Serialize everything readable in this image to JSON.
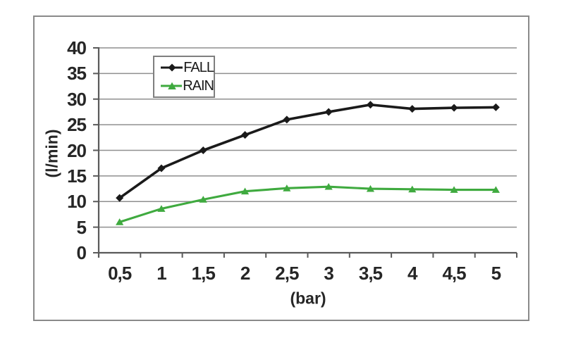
{
  "figure": {
    "background": "#ffffff",
    "border_color": "#8a8a8a"
  },
  "chart_data": {
    "type": "line",
    "x": [
      0.5,
      1,
      1.5,
      2,
      2.5,
      3,
      3.5,
      4,
      4.5,
      5
    ],
    "x_tick_labels": [
      "0,5",
      "1",
      "1,5",
      "2",
      "2,5",
      "3",
      "3,5",
      "4",
      "4,5",
      "5"
    ],
    "series": [
      {
        "name": "FALL",
        "color": "#1a1a1a",
        "marker": "diamond",
        "values": [
          10.7,
          16.5,
          20,
          23,
          26,
          27.5,
          28.9,
          28.1,
          28.3,
          28.4
        ]
      },
      {
        "name": "RAIN",
        "color": "#3faa3f",
        "marker": "triangle",
        "values": [
          6,
          8.6,
          10.4,
          12,
          12.6,
          12.9,
          12.5,
          12.4,
          12.3,
          12.3
        ]
      }
    ],
    "title": "",
    "xlabel": "(bar)",
    "ylabel": "(l/min)",
    "ylim": [
      0,
      40
    ],
    "y_tick_step": 5,
    "y_tick_labels": [
      "0",
      "5",
      "10",
      "15",
      "20",
      "25",
      "30",
      "35",
      "40"
    ],
    "grid": "horizontal-only",
    "gridline_color": "#8f8f8f",
    "axis_color": "#5a5a5a",
    "tick_label_color": "#262626",
    "legend": {
      "position": "top-center-inside",
      "entries": [
        "FALL",
        "RAIN"
      ],
      "border_color": "#7f7f7f",
      "background": "#ffffff"
    }
  }
}
